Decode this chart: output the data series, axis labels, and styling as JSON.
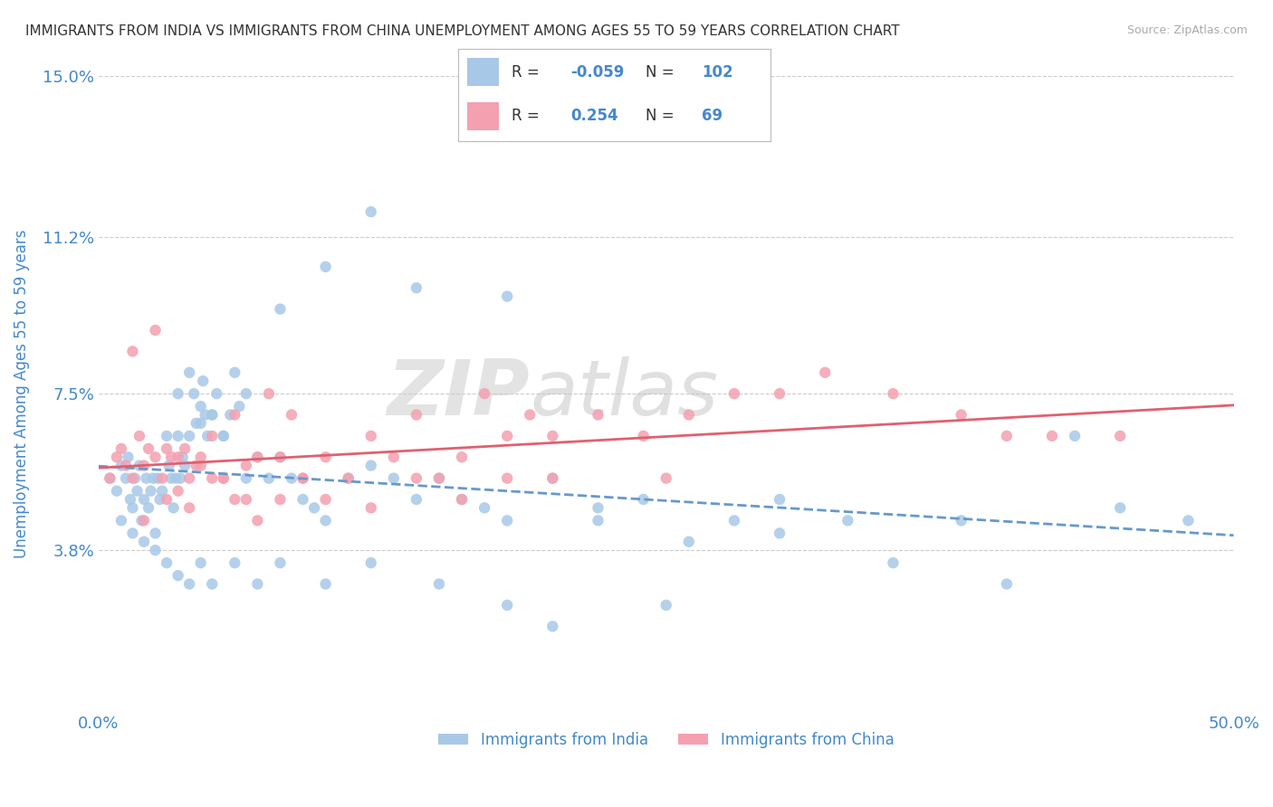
{
  "title": "IMMIGRANTS FROM INDIA VS IMMIGRANTS FROM CHINA UNEMPLOYMENT AMONG AGES 55 TO 59 YEARS CORRELATION CHART",
  "source": "Source: ZipAtlas.com",
  "ylabel": "Unemployment Among Ages 55 to 59 years",
  "xlim": [
    0.0,
    50.0
  ],
  "ylim": [
    0.0,
    15.0
  ],
  "yticks": [
    3.8,
    7.5,
    11.2,
    15.0
  ],
  "ytick_labels": [
    "3.8%",
    "7.5%",
    "11.2%",
    "15.0%"
  ],
  "xtick_labels": [
    "0.0%",
    "50.0%"
  ],
  "india_color": "#a8c8e8",
  "china_color": "#f4a0b0",
  "india_line_color": "#6699cc",
  "china_line_color": "#e06070",
  "india_R": -0.059,
  "india_N": 102,
  "china_R": 0.254,
  "china_N": 69,
  "india_label": "Immigrants from India",
  "china_label": "Immigrants from China",
  "watermark_text": "ZIP",
  "watermark_text2": "atlas",
  "background_color": "#ffffff",
  "grid_color": "#cccccc",
  "title_color": "#333333",
  "axis_label_color": "#4488cc",
  "tick_label_color": "#4488cc",
  "india_scatter_x": [
    0.5,
    0.8,
    1.0,
    1.2,
    1.3,
    1.4,
    1.5,
    1.6,
    1.7,
    1.8,
    1.9,
    2.0,
    2.1,
    2.2,
    2.3,
    2.4,
    2.5,
    2.6,
    2.7,
    2.8,
    3.0,
    3.1,
    3.2,
    3.3,
    3.4,
    3.5,
    3.6,
    3.7,
    3.8,
    4.0,
    4.2,
    4.3,
    4.5,
    4.6,
    4.7,
    4.8,
    5.0,
    5.2,
    5.5,
    5.8,
    6.0,
    6.2,
    6.5,
    7.0,
    7.5,
    8.0,
    8.5,
    9.0,
    9.5,
    10.0,
    11.0,
    12.0,
    13.0,
    14.0,
    15.0,
    16.0,
    17.0,
    18.0,
    20.0,
    22.0,
    24.0,
    28.0,
    30.0,
    33.0,
    35.0,
    38.0,
    40.0,
    43.0,
    45.0,
    48.0,
    1.0,
    1.5,
    2.0,
    2.5,
    3.0,
    3.5,
    4.0,
    4.5,
    5.0,
    6.0,
    7.0,
    8.0,
    10.0,
    12.0,
    15.0,
    18.0,
    20.0,
    25.0,
    8.0,
    10.0,
    12.0,
    14.0,
    18.0,
    22.0,
    26.0,
    30.0,
    3.5,
    4.0,
    4.5,
    5.0,
    5.5,
    6.5
  ],
  "india_scatter_y": [
    5.5,
    5.2,
    5.8,
    5.5,
    6.0,
    5.0,
    4.8,
    5.5,
    5.2,
    5.8,
    4.5,
    5.0,
    5.5,
    4.8,
    5.2,
    5.5,
    4.2,
    5.5,
    5.0,
    5.2,
    6.5,
    5.8,
    5.5,
    4.8,
    5.5,
    6.5,
    5.5,
    6.0,
    5.8,
    6.5,
    7.5,
    6.8,
    7.2,
    7.8,
    7.0,
    6.5,
    7.0,
    7.5,
    6.5,
    7.0,
    8.0,
    7.2,
    7.5,
    6.0,
    5.5,
    6.0,
    5.5,
    5.0,
    4.8,
    4.5,
    5.5,
    5.8,
    5.5,
    5.0,
    5.5,
    5.0,
    4.8,
    4.5,
    5.5,
    4.8,
    5.0,
    4.5,
    5.0,
    4.5,
    3.5,
    4.5,
    3.0,
    6.5,
    4.8,
    4.5,
    4.5,
    4.2,
    4.0,
    3.8,
    3.5,
    3.2,
    3.0,
    3.5,
    3.0,
    3.5,
    3.0,
    3.5,
    3.0,
    3.5,
    3.0,
    2.5,
    2.0,
    2.5,
    9.5,
    10.5,
    11.8,
    10.0,
    9.8,
    4.5,
    4.0,
    4.2,
    7.5,
    8.0,
    6.8,
    7.0,
    6.5,
    5.5
  ],
  "china_scatter_x": [
    0.5,
    0.8,
    1.0,
    1.2,
    1.5,
    1.8,
    2.0,
    2.2,
    2.5,
    2.8,
    3.0,
    3.2,
    3.5,
    3.8,
    4.0,
    4.3,
    4.5,
    5.0,
    5.5,
    6.0,
    6.5,
    7.0,
    7.5,
    8.0,
    8.5,
    9.0,
    10.0,
    11.0,
    12.0,
    13.0,
    14.0,
    15.0,
    16.0,
    17.0,
    18.0,
    19.0,
    20.0,
    22.0,
    24.0,
    26.0,
    28.0,
    30.0,
    32.0,
    35.0,
    38.0,
    40.0,
    45.0,
    2.0,
    3.0,
    4.0,
    5.0,
    6.0,
    7.0,
    8.0,
    9.0,
    10.0,
    12.0,
    14.0,
    16.0,
    18.0,
    20.0,
    25.0,
    1.5,
    2.5,
    3.5,
    4.5,
    5.5,
    6.5,
    42.0
  ],
  "china_scatter_y": [
    5.5,
    6.0,
    6.2,
    5.8,
    5.5,
    6.5,
    5.8,
    6.2,
    6.0,
    5.5,
    6.2,
    6.0,
    6.0,
    6.2,
    5.5,
    5.8,
    6.0,
    6.5,
    5.5,
    7.0,
    5.8,
    6.0,
    7.5,
    6.0,
    7.0,
    5.5,
    6.0,
    5.5,
    6.5,
    6.0,
    7.0,
    5.5,
    6.0,
    7.5,
    6.5,
    7.0,
    6.5,
    7.0,
    6.5,
    7.0,
    7.5,
    7.5,
    8.0,
    7.5,
    7.0,
    6.5,
    6.5,
    4.5,
    5.0,
    4.8,
    5.5,
    5.0,
    4.5,
    5.0,
    5.5,
    5.0,
    4.8,
    5.5,
    5.0,
    5.5,
    5.5,
    5.5,
    8.5,
    9.0,
    5.2,
    5.8,
    5.5,
    5.0,
    6.5
  ]
}
